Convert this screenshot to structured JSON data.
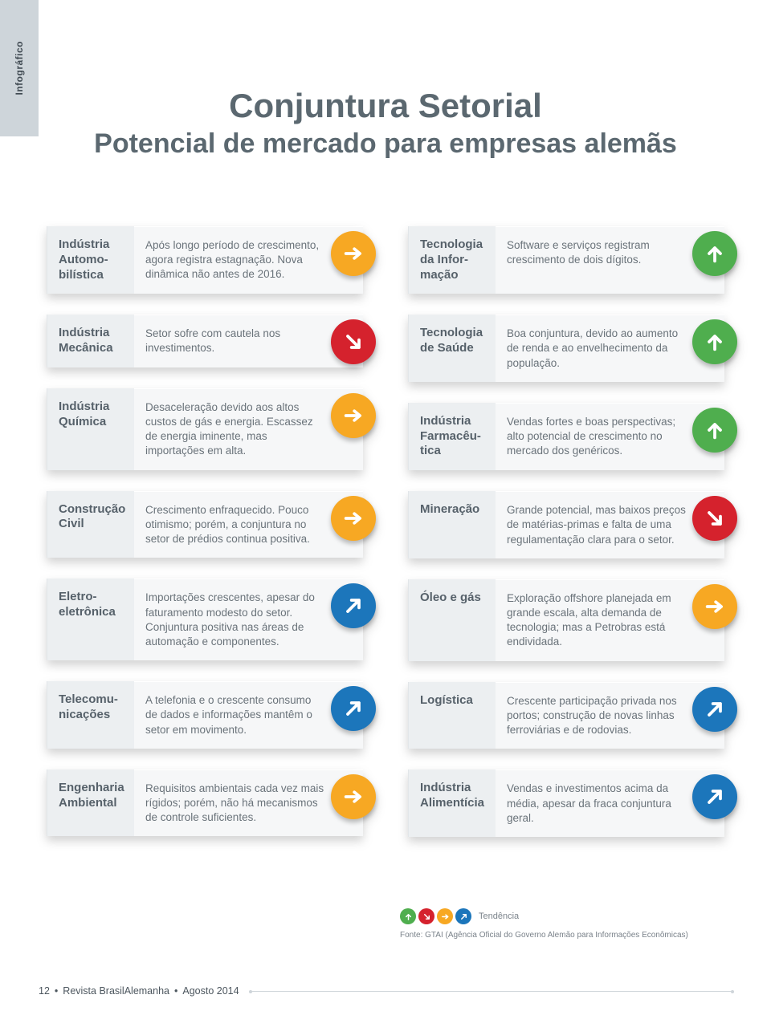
{
  "side_tab": "Infográfico",
  "title_main": "Conjuntura Setorial",
  "title_sub": "Potencial de mercado para empresas alemãs",
  "trend_colors": {
    "up": "#4fae4e",
    "rise": "#1c76bb",
    "flat": "#f7a823",
    "fall": "#d5222d"
  },
  "left_sectors": [
    {
      "name": "Indústria Automo­bilística",
      "desc": "Após longo período de crescimento, agora registra estagnação. Nova dinâmica não antes de 2016.",
      "trend": "flat"
    },
    {
      "name": "Indústria Mecânica",
      "desc": "Setor sofre com cautela nos investimentos.",
      "trend": "fall"
    },
    {
      "name": "Indústria Química",
      "desc": "Desaceleração devido aos altos custos de gás e energia. Escassez de energia iminente, mas importações em alta.",
      "trend": "flat"
    },
    {
      "name": "Construção Civil",
      "desc": "Crescimento enfraquecido. Pouco otimismo; porém, a conjuntura no setor de prédios continua positiva.",
      "trend": "flat"
    },
    {
      "name": "Eletro­eletrônica",
      "desc": "Importações crescentes, apesar do faturamento modesto do setor. Conjuntura positiva nas áreas de automação e componentes.",
      "trend": "rise"
    },
    {
      "name": "Telecomu­nicações",
      "desc": "A telefonia e o crescente consumo de dados e informações mantêm o setor em movimento.",
      "trend": "rise"
    },
    {
      "name": "Engenharia Ambiental",
      "desc": "Requisitos ambientais cada vez mais rígidos; porém, não há mecanismos de controle suficientes.",
      "trend": "flat"
    }
  ],
  "right_sectors": [
    {
      "name": "Tecnologia da Infor­mação",
      "desc": "Software e serviços registram crescimento de dois dígitos.",
      "trend": "up"
    },
    {
      "name": "Tecnologia de Saúde",
      "desc": "Boa conjuntura, devido ao aumento de renda e ao envelhecimento da população.",
      "trend": "up"
    },
    {
      "name": "Indústria Farmacêu­tica",
      "desc": "Vendas fortes e boas perspectivas; alto potencial de crescimento no mercado dos genéricos.",
      "trend": "up"
    },
    {
      "name": "Mineração",
      "desc": "Grande potencial, mas baixos preços de matérias-primas e falta de uma regulamentação clara para o setor.",
      "trend": "fall"
    },
    {
      "name": "Óleo e gás",
      "desc": "Exploração offshore planejada em grande escala, alta demanda de tecnologia; mas a Petrobras está endividada.",
      "trend": "flat"
    },
    {
      "name": "Logística",
      "desc": "Crescente participação privada nos portos; construção de novas linhas ferroviárias e de rodovias.",
      "trend": "rise"
    },
    {
      "name": "Indústria Alimentícia",
      "desc": "Vendas e investimentos acima da média, apesar da fraca conjuntura geral.",
      "trend": "rise"
    }
  ],
  "legend_label": "Tendência",
  "source": "Fonte: GTAI (Agência Oficial do Governo Alemão para Informações Econômicas)",
  "footer": {
    "page": "12",
    "mag": "Revista BrasilAlemanha",
    "issue": "Agosto 2014"
  }
}
